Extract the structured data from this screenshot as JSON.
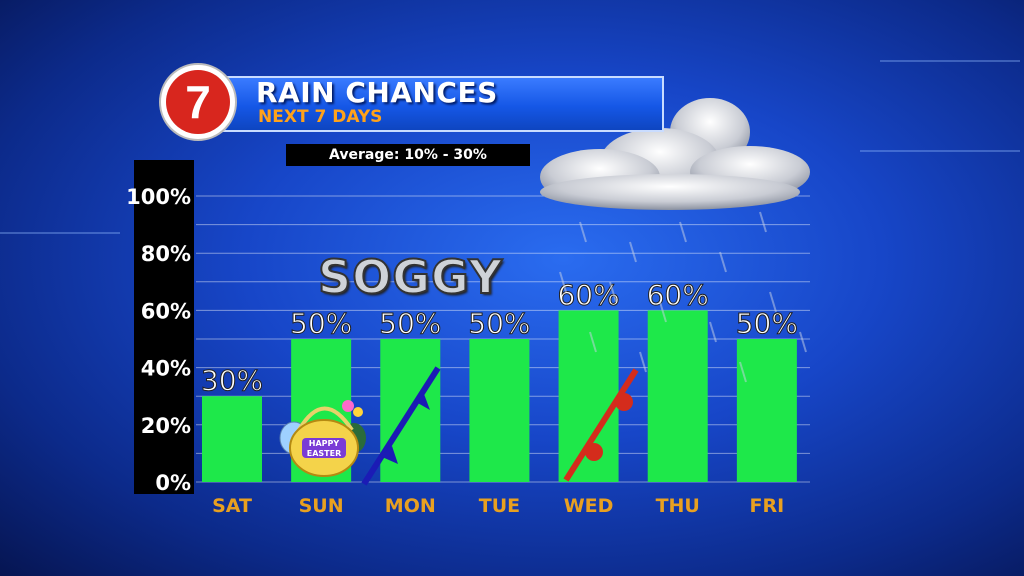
{
  "header": {
    "logo_text": "7",
    "title": "RAIN CHANCES",
    "subtitle": "NEXT 7 DAYS",
    "average_label": "Average: 10% - 30%"
  },
  "overlay_label": "SOGGY",
  "colors": {
    "bar": "#1ee84a",
    "logo_red": "#d8261e",
    "day_label": "#e8a020",
    "value_label": "#ffffff",
    "cold_front": "#1b1bb5",
    "warm_front": "#d42c1c"
  },
  "icons": [
    "easter-basket-icon",
    "cold-front-icon",
    "warm-front-icon",
    "rain-cloud-icon"
  ],
  "chart_data": {
    "type": "bar",
    "categories": [
      "SAT",
      "SUN",
      "MON",
      "TUE",
      "WED",
      "THU",
      "FRI"
    ],
    "values": [
      30,
      50,
      50,
      50,
      60,
      60,
      50
    ],
    "value_labels": [
      "30%",
      "50%",
      "50%",
      "50%",
      "60%",
      "60%",
      "50%"
    ],
    "ylim": [
      0,
      100
    ],
    "yticks": [
      "0%",
      "20%",
      "40%",
      "60%",
      "80%",
      "100%"
    ],
    "grid": true
  }
}
